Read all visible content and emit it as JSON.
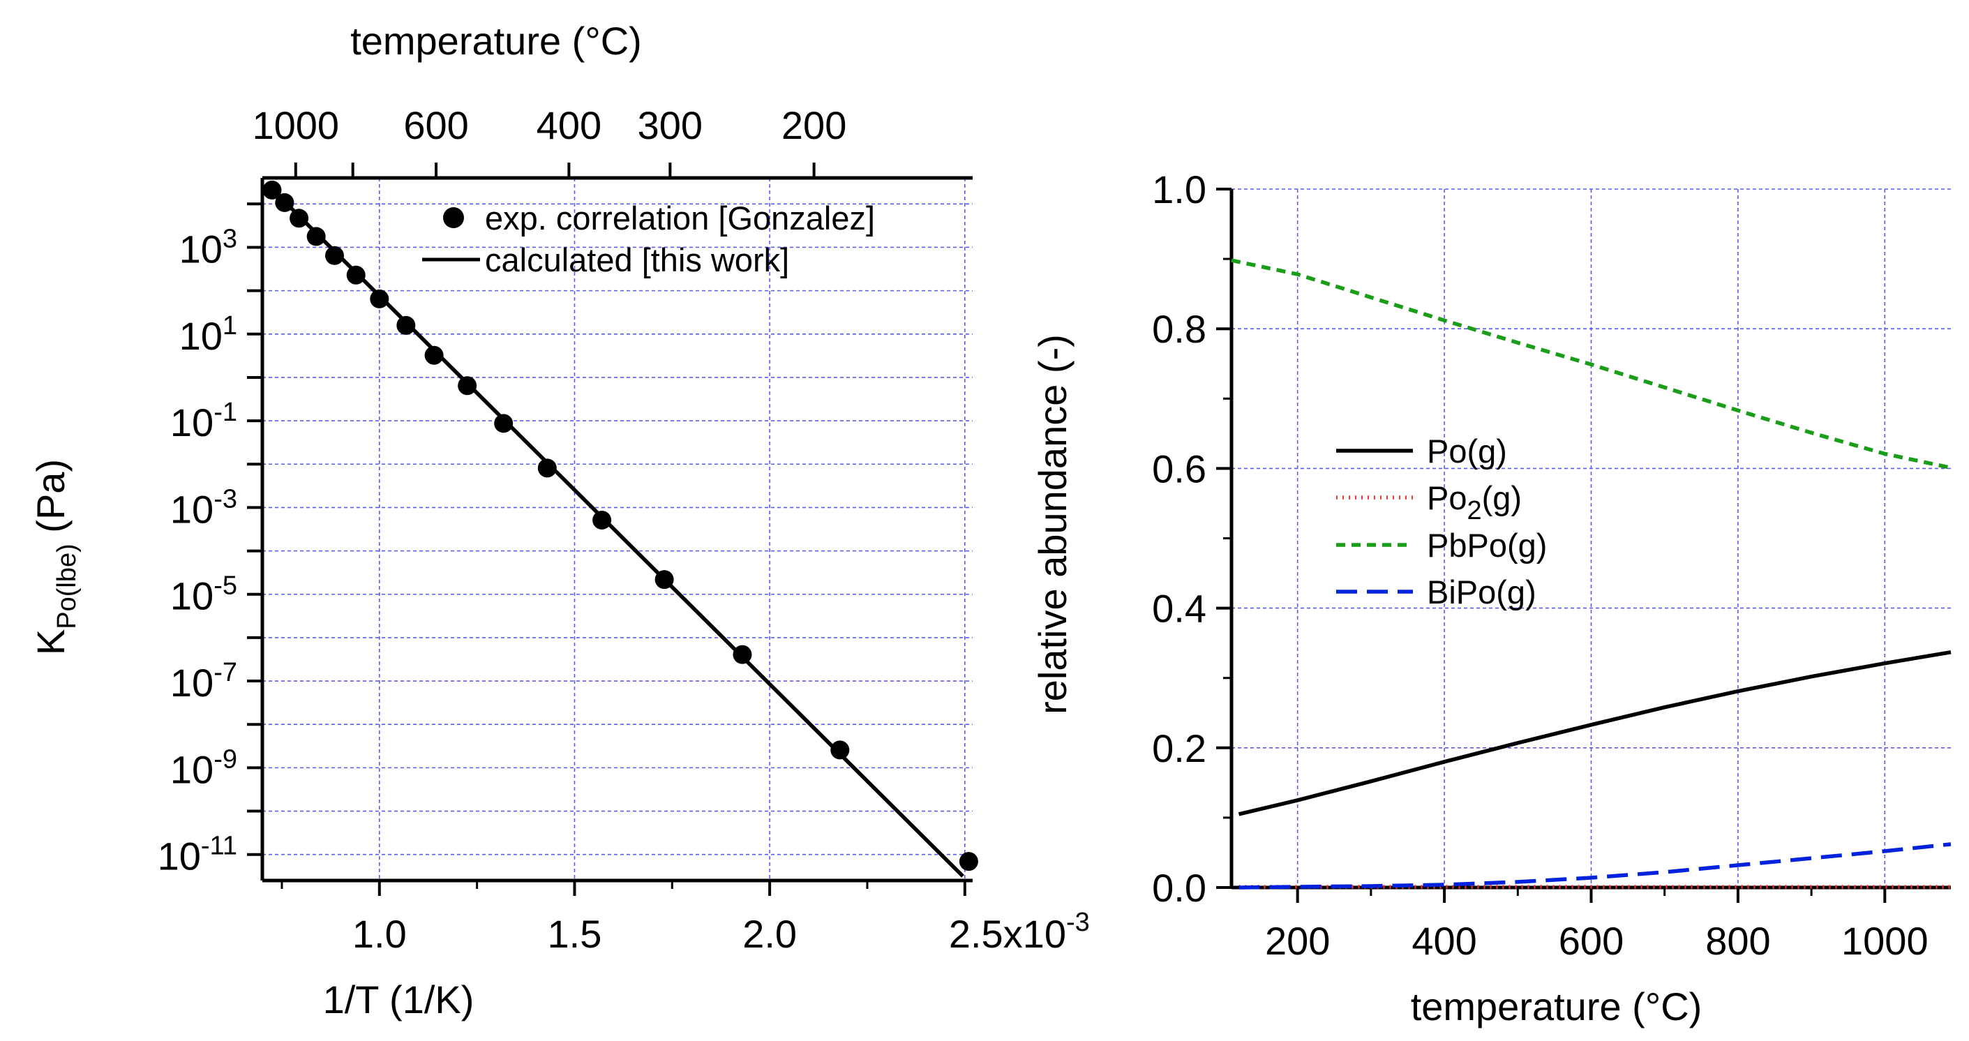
{
  "chart_data": [
    {
      "type": "scatter",
      "name": "left-panel",
      "xlabel": "1/T (1/K)",
      "ylabel_main": "K",
      "ylabel_subscript": "Po(lbe)",
      "ylabel_unit": "(Pa)",
      "top_xlabel": "temperature (°C)",
      "yscale": "log",
      "xlim": [
        0.0007,
        0.00252
      ],
      "ylim_log10": [
        -11.6,
        4.6
      ],
      "x_ticks": [
        {
          "value": 0.001,
          "label": "1.0"
        },
        {
          "value": 0.0015,
          "label": "1.5"
        },
        {
          "value": 0.002,
          "label": "2.0"
        },
        {
          "value": 0.0025,
          "label": "2.5x10",
          "exponent": "-3"
        }
      ],
      "y_ticks": [
        {
          "exp": 3,
          "base": "10",
          "sup": "3"
        },
        {
          "exp": 1,
          "base": "10",
          "sup": "1"
        },
        {
          "exp": -1,
          "base": "10",
          "sup": "-1"
        },
        {
          "exp": -3,
          "base": "10",
          "sup": "-3"
        },
        {
          "exp": -5,
          "base": "10",
          "sup": "-5"
        },
        {
          "exp": -7,
          "base": "10",
          "sup": "-7"
        },
        {
          "exp": -9,
          "base": "10",
          "sup": "-9"
        },
        {
          "exp": -11,
          "base": "10",
          "sup": "-11"
        }
      ],
      "top_ticks": [
        {
          "celsius": 1000,
          "label": "1000"
        },
        {
          "celsius": 800,
          "label": ""
        },
        {
          "celsius": 600,
          "label": "600"
        },
        {
          "celsius": 400,
          "label": "400"
        },
        {
          "celsius": 300,
          "label": "300"
        },
        {
          "celsius": 200,
          "label": "200"
        }
      ],
      "series": [
        {
          "name": "exp. correlation [Gonzalez]",
          "style": "markers",
          "color": "#000000",
          "points": [
            {
              "x": 0.000725,
              "log10y": 4.32
            },
            {
              "x": 0.000757,
              "log10y": 4.03
            },
            {
              "x": 0.000794,
              "log10y": 3.67
            },
            {
              "x": 0.000838,
              "log10y": 3.25
            },
            {
              "x": 0.000885,
              "log10y": 2.81
            },
            {
              "x": 0.00094,
              "log10y": 2.36
            },
            {
              "x": 0.001,
              "log10y": 1.81
            },
            {
              "x": 0.001068,
              "log10y": 1.2
            },
            {
              "x": 0.00114,
              "log10y": 0.51
            },
            {
              "x": 0.001225,
              "log10y": -0.19
            },
            {
              "x": 0.001318,
              "log10y": -1.06
            },
            {
              "x": 0.00143,
              "log10y": -2.09
            },
            {
              "x": 0.00157,
              "log10y": -3.29
            },
            {
              "x": 0.00173,
              "log10y": -4.66
            },
            {
              "x": 0.00193,
              "log10y": -6.39
            },
            {
              "x": 0.00218,
              "log10y": -8.59
            },
            {
              "x": 0.00251,
              "log10y": -11.16
            }
          ]
        },
        {
          "name": "calculated [this work]",
          "style": "line",
          "color": "#000000",
          "points": [
            {
              "x": 0.000725,
              "log10y": 4.34
            },
            {
              "x": 0.002495,
              "log10y": -11.5
            }
          ]
        }
      ],
      "grid": true,
      "legend": "top-right"
    },
    {
      "type": "line",
      "name": "right-panel",
      "xlabel": "temperature (°C)",
      "ylabel": "relative abundance (-)",
      "xlim": [
        110,
        1090
      ],
      "ylim": [
        0,
        1.0
      ],
      "x_ticks": [
        200,
        400,
        600,
        800,
        1000
      ],
      "y_ticks": [
        "0.0",
        "0.2",
        "0.4",
        "0.6",
        "0.8",
        "1.0"
      ],
      "series": [
        {
          "name": "Po(g)",
          "legend_text": "Po(g)",
          "color": "#000000",
          "dash": "solid",
          "x": [
            120,
            200,
            300,
            400,
            500,
            600,
            700,
            800,
            900,
            1000,
            1090
          ],
          "values": [
            0.105,
            0.125,
            0.152,
            0.18,
            0.207,
            0.233,
            0.258,
            0.281,
            0.302,
            0.321,
            0.337
          ]
        },
        {
          "name": "Po2(g)",
          "legend_text": "Po",
          "legend_sub": "2",
          "legend_tail": "(g)",
          "color": "#ff3333",
          "dash": "dotted",
          "x": [
            120,
            1090
          ],
          "values": [
            0.001,
            0.001
          ]
        },
        {
          "name": "PbPo(g)",
          "legend_text": "PbPo(g)",
          "color": "#1a9e1a",
          "dash": "dashed",
          "x": [
            110,
            200,
            300,
            400,
            500,
            600,
            700,
            800,
            900,
            1000,
            1090
          ],
          "values": [
            0.898,
            0.878,
            0.845,
            0.812,
            0.78,
            0.749,
            0.716,
            0.683,
            0.651,
            0.621,
            0.601
          ]
        },
        {
          "name": "BiPo(g)",
          "legend_text": "BiPo(g)",
          "color": "#0022dd",
          "dash": "longdash",
          "x": [
            120,
            200,
            300,
            400,
            500,
            600,
            700,
            800,
            900,
            1000,
            1090
          ],
          "values": [
            0.0,
            0.001,
            0.002,
            0.004,
            0.008,
            0.014,
            0.022,
            0.032,
            0.042,
            0.052,
            0.062
          ]
        }
      ],
      "grid": true,
      "legend": "center-left"
    }
  ]
}
